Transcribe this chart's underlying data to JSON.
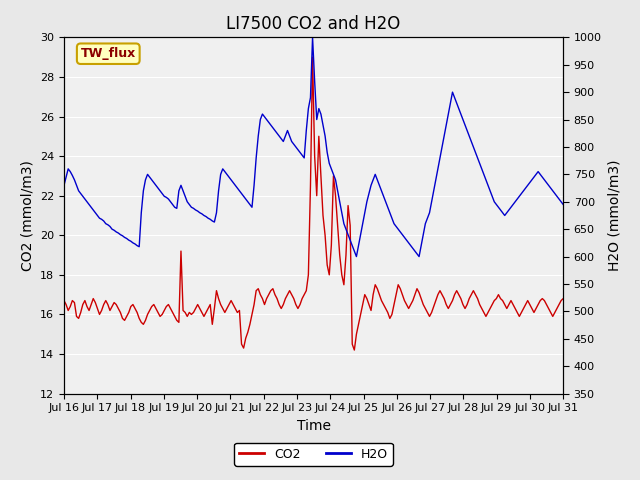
{
  "title": "LI7500 CO2 and H2O",
  "xlabel": "Time",
  "ylabel_left": "CO2 (mmol/m3)",
  "ylabel_right": "H2O (mmol/m3)",
  "ylim_left": [
    12,
    30
  ],
  "ylim_right": [
    350,
    1000
  ],
  "yticks_left": [
    12,
    14,
    16,
    18,
    20,
    22,
    24,
    26,
    28,
    30
  ],
  "yticks_right": [
    350,
    400,
    450,
    500,
    550,
    600,
    650,
    700,
    750,
    800,
    850,
    900,
    950,
    1000
  ],
  "xlim": [
    0,
    15
  ],
  "xtick_labels": [
    "Jul 16",
    "Jul 17",
    "Jul 18",
    "Jul 19",
    "Jul 20",
    "Jul 21",
    "Jul 22",
    "Jul 23",
    "Jul 24",
    "Jul 25",
    "Jul 26",
    "Jul 27",
    "Jul 28",
    "Jul 29",
    "Jul 30",
    "Jul 31"
  ],
  "xtick_positions": [
    0,
    1,
    2,
    3,
    4,
    5,
    6,
    7,
    8,
    9,
    10,
    11,
    12,
    13,
    14,
    15
  ],
  "legend_label_co2": "CO2",
  "legend_label_h2o": "H2O",
  "annotation_text": "TW_flux",
  "annotation_color_text": "#8B0000",
  "annotation_bg_color": "#FFFFC0",
  "annotation_border_color": "#C8A000",
  "co2_color": "#CC0000",
  "h2o_color": "#0000CC",
  "bg_color": "#E8E8E8",
  "axes_bg_color": "#F0F0F0",
  "grid_color": "#FFFFFF",
  "title_fontsize": 12,
  "axis_label_fontsize": 10,
  "tick_fontsize": 8,
  "legend_fontsize": 9,
  "co2_data": [
    16.7,
    16.5,
    16.2,
    16.4,
    16.7,
    16.6,
    15.9,
    15.8,
    16.1,
    16.5,
    16.7,
    16.4,
    16.2,
    16.5,
    16.8,
    16.6,
    16.3,
    16.0,
    16.2,
    16.5,
    16.7,
    16.5,
    16.2,
    16.4,
    16.6,
    16.5,
    16.3,
    16.1,
    15.8,
    15.7,
    15.9,
    16.1,
    16.4,
    16.5,
    16.3,
    16.1,
    15.8,
    15.6,
    15.5,
    15.7,
    16.0,
    16.2,
    16.4,
    16.5,
    16.3,
    16.1,
    15.9,
    16.0,
    16.2,
    16.4,
    16.5,
    16.3,
    16.1,
    15.9,
    15.7,
    15.6,
    19.2,
    16.2,
    16.1,
    15.9,
    16.1,
    16.0,
    16.1,
    16.3,
    16.5,
    16.3,
    16.1,
    15.9,
    16.1,
    16.3,
    16.5,
    15.5,
    16.3,
    17.2,
    16.8,
    16.5,
    16.3,
    16.1,
    16.3,
    16.5,
    16.7,
    16.5,
    16.3,
    16.1,
    16.2,
    14.5,
    14.3,
    14.8,
    15.1,
    15.5,
    16.0,
    16.5,
    17.2,
    17.3,
    17.0,
    16.8,
    16.5,
    16.8,
    17.0,
    17.2,
    17.3,
    17.0,
    16.8,
    16.5,
    16.3,
    16.5,
    16.8,
    17.0,
    17.2,
    17.0,
    16.8,
    16.5,
    16.3,
    16.5,
    16.8,
    17.0,
    17.2,
    18.0,
    22.5,
    29.0,
    24.0,
    22.0,
    25.0,
    23.0,
    21.0,
    20.0,
    18.5,
    18.0,
    19.5,
    23.0,
    22.0,
    20.5,
    19.0,
    18.0,
    17.5,
    19.0,
    21.5,
    20.5,
    14.5,
    14.2,
    15.0,
    15.5,
    16.0,
    16.5,
    17.0,
    16.8,
    16.5,
    16.2,
    17.0,
    17.5,
    17.3,
    17.0,
    16.7,
    16.5,
    16.3,
    16.1,
    15.8,
    16.0,
    16.5,
    17.0,
    17.5,
    17.3,
    17.0,
    16.7,
    16.5,
    16.3,
    16.5,
    16.7,
    17.0,
    17.3,
    17.1,
    16.8,
    16.5,
    16.3,
    16.1,
    15.9,
    16.1,
    16.4,
    16.7,
    17.0,
    17.2,
    17.0,
    16.8,
    16.5,
    16.3,
    16.5,
    16.7,
    17.0,
    17.2,
    17.0,
    16.8,
    16.5,
    16.3,
    16.5,
    16.8,
    17.0,
    17.2,
    17.0,
    16.8,
    16.5,
    16.3,
    16.1,
    15.9,
    16.1,
    16.3,
    16.5,
    16.7,
    16.8,
    17.0,
    16.8,
    16.7,
    16.5,
    16.3,
    16.5,
    16.7,
    16.5,
    16.3,
    16.1,
    15.9,
    16.1,
    16.3,
    16.5,
    16.7,
    16.5,
    16.3,
    16.1,
    16.3,
    16.5,
    16.7,
    16.8,
    16.7,
    16.5,
    16.3,
    16.1,
    15.9,
    16.1,
    16.3,
    16.5,
    16.7,
    16.8
  ],
  "h2o_data": [
    730,
    745,
    760,
    755,
    748,
    740,
    730,
    720,
    715,
    710,
    705,
    700,
    695,
    690,
    685,
    680,
    675,
    670,
    668,
    665,
    660,
    658,
    655,
    650,
    648,
    645,
    643,
    640,
    638,
    635,
    633,
    630,
    628,
    625,
    623,
    620,
    618,
    680,
    720,
    740,
    750,
    745,
    740,
    735,
    730,
    725,
    720,
    715,
    710,
    708,
    705,
    700,
    695,
    690,
    688,
    720,
    730,
    720,
    710,
    700,
    695,
    690,
    688,
    685,
    683,
    680,
    678,
    675,
    673,
    670,
    668,
    665,
    663,
    680,
    720,
    750,
    760,
    755,
    750,
    745,
    740,
    735,
    730,
    725,
    720,
    715,
    710,
    705,
    700,
    695,
    690,
    730,
    780,
    820,
    850,
    860,
    855,
    850,
    845,
    840,
    835,
    830,
    825,
    820,
    815,
    810,
    820,
    830,
    820,
    810,
    805,
    800,
    795,
    790,
    785,
    780,
    830,
    870,
    890,
    1000,
    920,
    850,
    870,
    860,
    840,
    820,
    790,
    770,
    760,
    750,
    740,
    720,
    700,
    680,
    660,
    650,
    640,
    630,
    620,
    610,
    600,
    620,
    640,
    660,
    680,
    700,
    715,
    730,
    740,
    750,
    740,
    730,
    720,
    710,
    700,
    690,
    680,
    670,
    660,
    655,
    650,
    645,
    640,
    635,
    630,
    625,
    620,
    615,
    610,
    605,
    600,
    620,
    640,
    660,
    670,
    680,
    700,
    720,
    740,
    760,
    780,
    800,
    820,
    840,
    860,
    880,
    900,
    890,
    880,
    870,
    860,
    850,
    840,
    830,
    820,
    810,
    800,
    790,
    780,
    770,
    760,
    750,
    740,
    730,
    720,
    710,
    700,
    695,
    690,
    685,
    680,
    675,
    680,
    685,
    690,
    695,
    700,
    705,
    710,
    715,
    720,
    725,
    730,
    735,
    740,
    745,
    750,
    755,
    750,
    745,
    740,
    735,
    730,
    725,
    720,
    715,
    710,
    705,
    700,
    695
  ]
}
